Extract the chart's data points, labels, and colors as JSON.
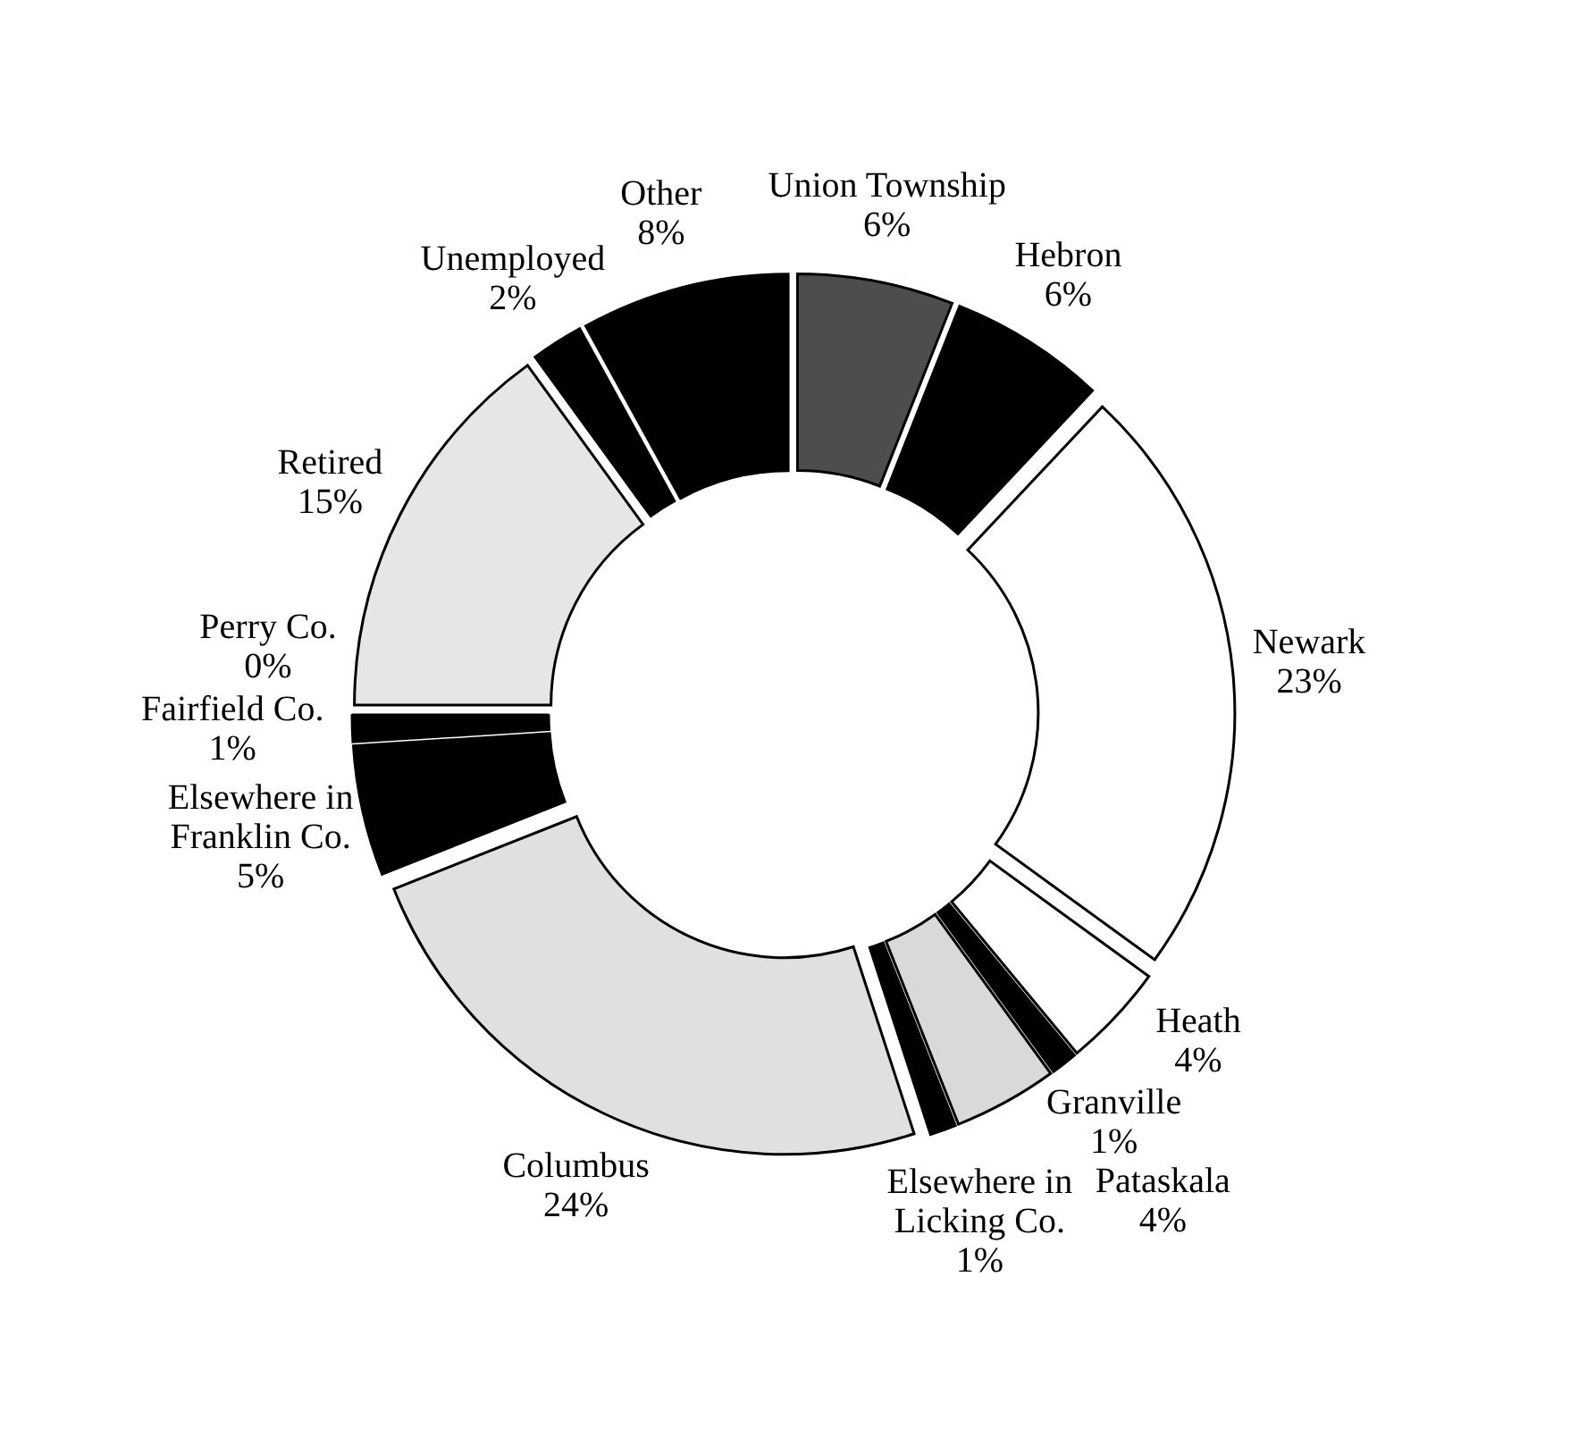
{
  "chart_data": {
    "type": "donut",
    "categories": [
      "Union Township",
      "Hebron",
      "Newark",
      "Heath",
      "Granville",
      "Pataskala",
      "Elsewhere in Licking Co.",
      "Columbus",
      "Elsewhere in Franklin Co.",
      "Fairfield Co.",
      "Perry Co.",
      "Retired",
      "Unemployed",
      "Other"
    ],
    "values": [
      6,
      6,
      23,
      4,
      1,
      4,
      1,
      24,
      5,
      1,
      0,
      15,
      2,
      8
    ],
    "value_labels": [
      "6%",
      "6%",
      "23%",
      "4%",
      "1%",
      "4%",
      "1%",
      "24%",
      "5%",
      "1%",
      "0%",
      "15%",
      "2%",
      "8%"
    ],
    "colors": [
      "#4d4d4d",
      "#000000",
      "#ffffff",
      "#ffffff",
      "#000000",
      "#d9d9d9",
      "#000000",
      "#e0e0e0",
      "#000000",
      "#000000",
      "#000000",
      "#e6e6e6",
      "#000000",
      "#000000"
    ]
  }
}
